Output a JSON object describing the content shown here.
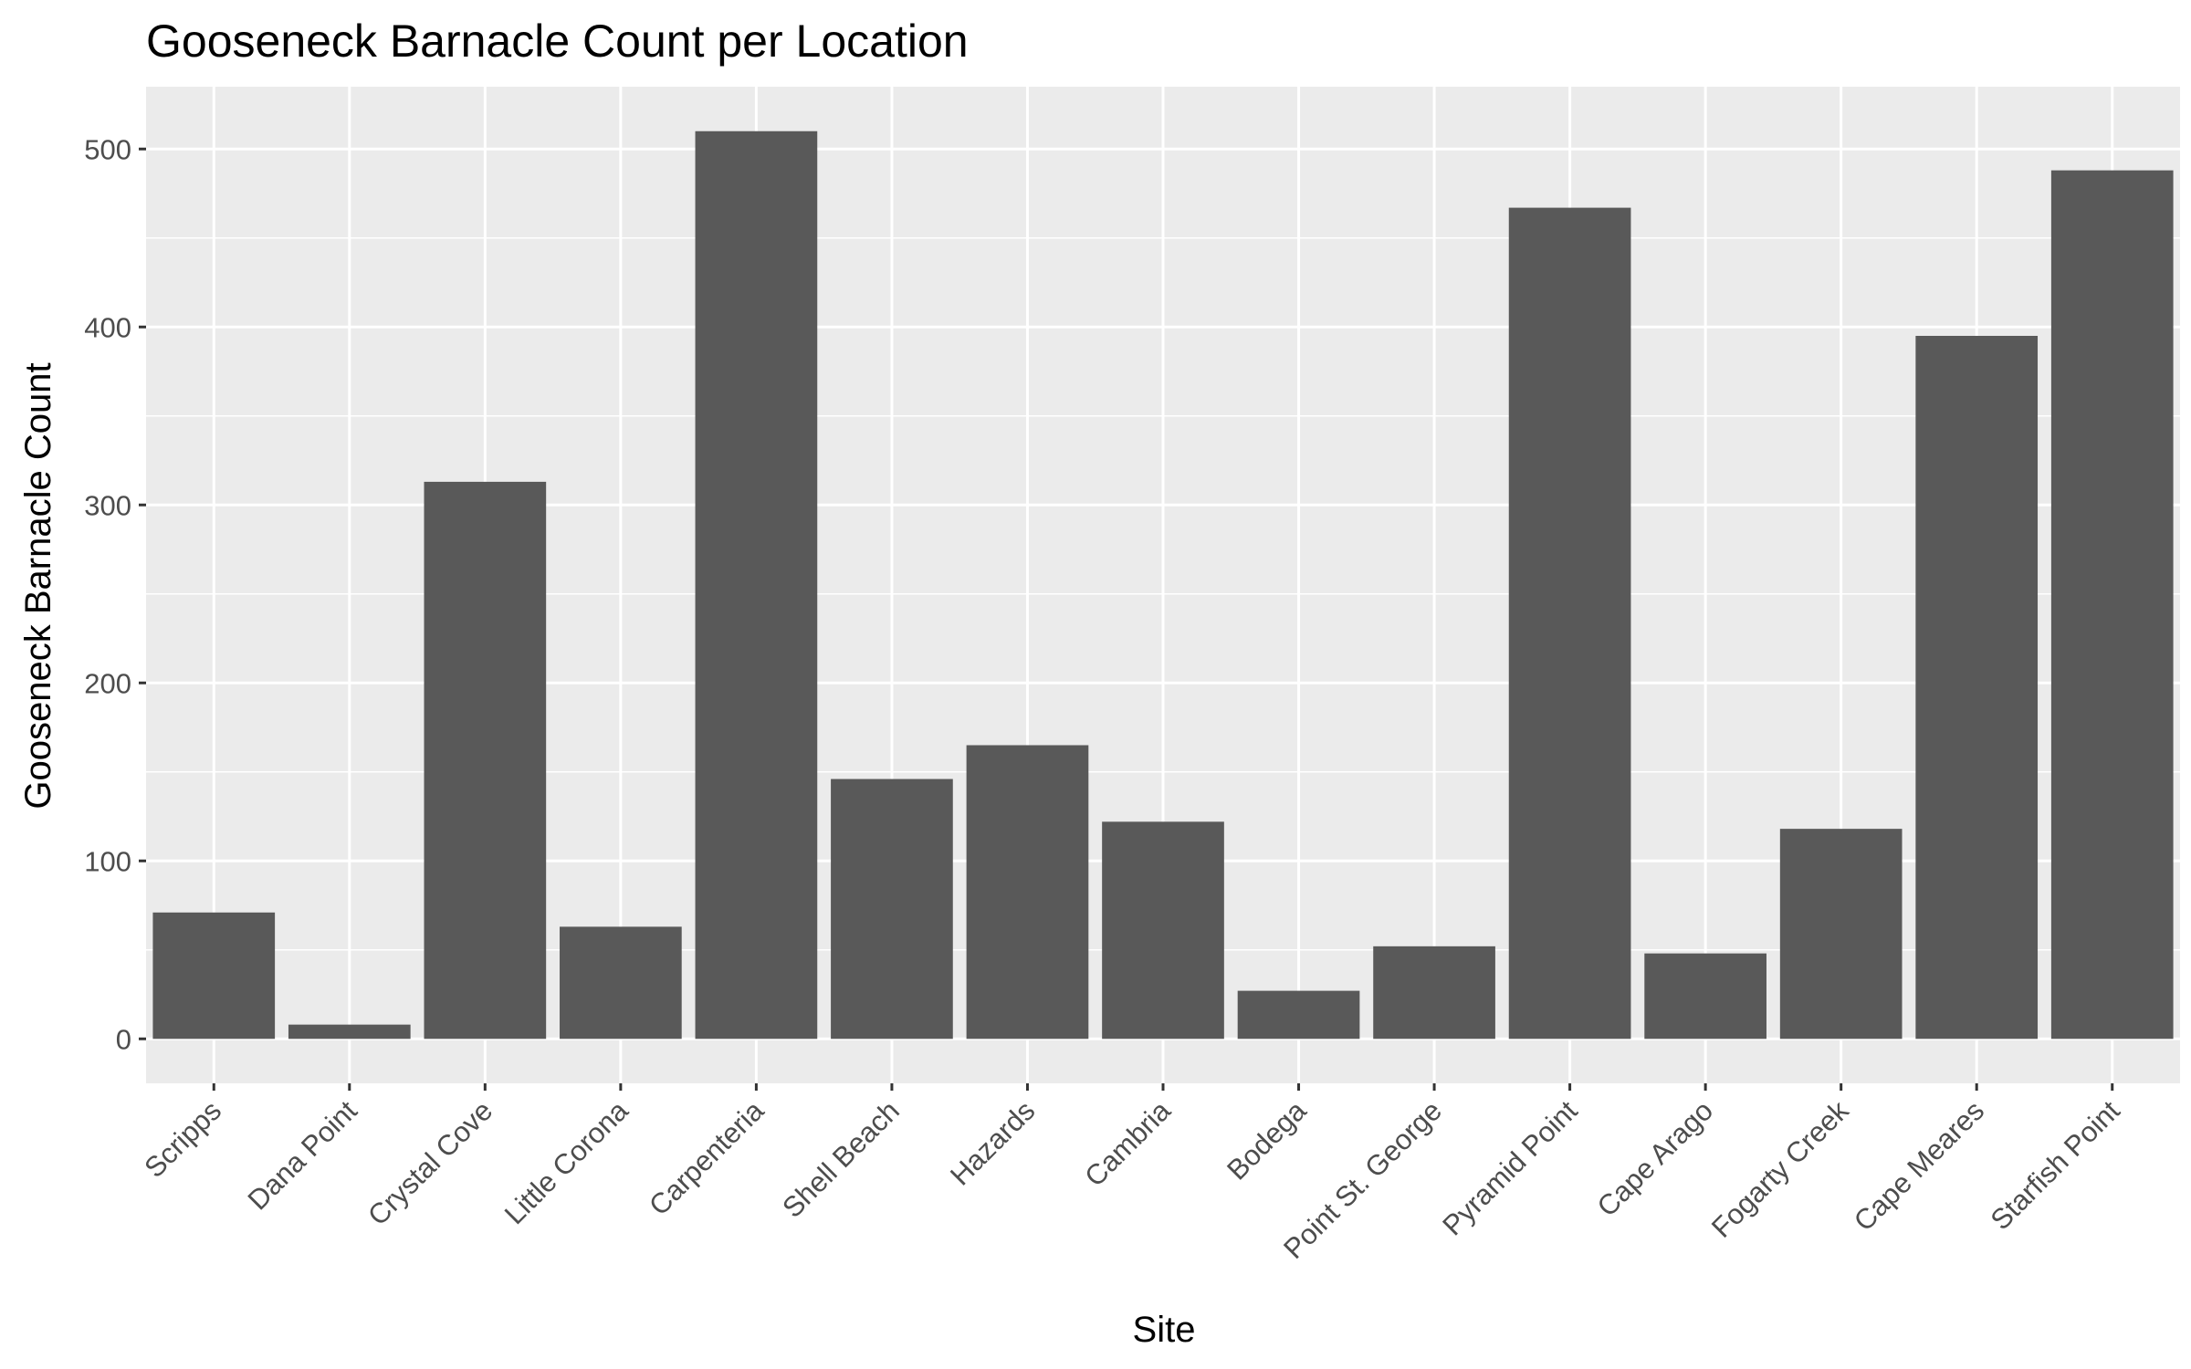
{
  "chart_data": {
    "type": "bar",
    "title": "Gooseneck Barnacle Count per Location",
    "xlabel": "Site",
    "ylabel": "Gooseneck Barnacle Count",
    "categories": [
      "Scripps",
      "Dana Point",
      "Crystal Cove",
      "Little Corona",
      "Carpenteria",
      "Shell Beach",
      "Hazards",
      "Cambria",
      "Bodega",
      "Point St. George",
      "Pyramid Point",
      "Cape Arago",
      "Fogarty Creek",
      "Cape Meares",
      "Starfish Point"
    ],
    "values": [
      71,
      8,
      313,
      63,
      510,
      146,
      165,
      122,
      27,
      52,
      467,
      48,
      118,
      395,
      488
    ],
    "ylim": [
      -25,
      535
    ],
    "yticks": [
      0,
      100,
      200,
      300,
      400,
      500
    ],
    "grid": true,
    "legend": "none",
    "colors": {
      "bar": "#595959",
      "panel": "#ebebeb",
      "grid": "#ffffff",
      "tick_text": "#4d4d4d",
      "tick_mark": "#333333"
    }
  }
}
